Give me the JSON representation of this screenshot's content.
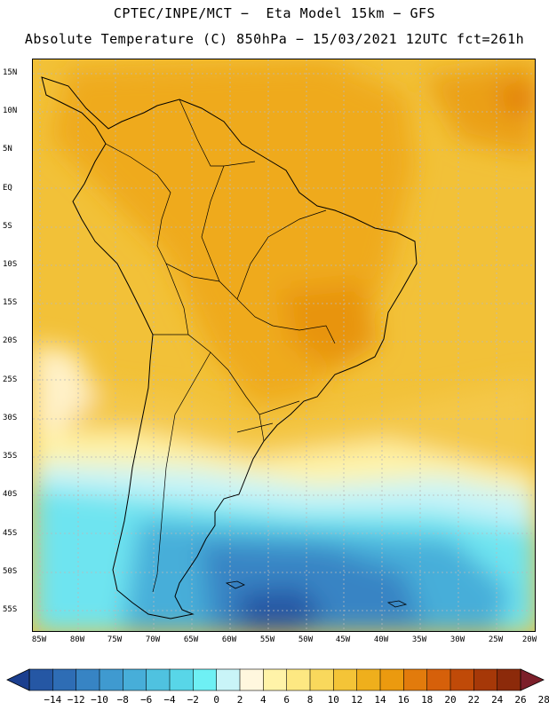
{
  "header": {
    "title_line1": "CPTEC/INPE/MCT −  Eta Model 15km − GFS",
    "title_line2": "Absolute Temperature (C) 850hPa − 15/03/2021 12UTC fct=261h"
  },
  "map": {
    "region": "South America",
    "lat_labels": [
      "15N",
      "10N",
      "5N",
      "EQ",
      "5S",
      "10S",
      "15S",
      "20S",
      "25S",
      "30S",
      "35S",
      "40S",
      "45S",
      "50S",
      "55S"
    ],
    "lon_labels": [
      "85W",
      "80W",
      "75W",
      "70W",
      "65W",
      "60W",
      "55W",
      "50W",
      "45W",
      "40W",
      "35W",
      "30W",
      "25W",
      "20W"
    ]
  },
  "colorbar": {
    "labels": [
      "−14",
      "−12",
      "−10",
      "−8",
      "−6",
      "−4",
      "−2",
      "0",
      "2",
      "4",
      "6",
      "8",
      "10",
      "12",
      "14",
      "16",
      "18",
      "20",
      "22",
      "24",
      "26",
      "28"
    ],
    "colors": [
      "#1b3f8f",
      "#2557a4",
      "#2e6db5",
      "#3784c4",
      "#3f9ad0",
      "#47aed9",
      "#4fc2e0",
      "#58d6e8",
      "#6ef0f4",
      "#c9f4f8",
      "#fff7de",
      "#fff3a8",
      "#fde882",
      "#f9d85c",
      "#f4c437",
      "#efaf1c",
      "#eb9a0f",
      "#e27b0c",
      "#d6600a",
      "#c04a08",
      "#a63808",
      "#8c2a0a",
      "#7c1f2a"
    ]
  }
}
